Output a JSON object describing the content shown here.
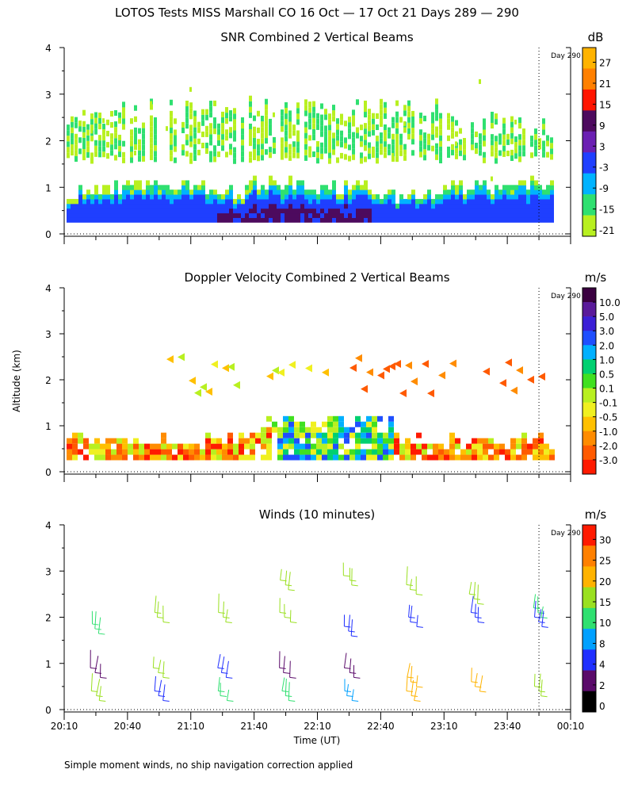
{
  "page_title": "LOTOS Tests MISS Marshall CO  16 Oct — 17 Oct 21 Days 289 — 290",
  "footnote": "Simple moment winds, no ship navigation correction applied",
  "day_marker_label": "Day 290",
  "chart_data": [
    {
      "type": "heatmap",
      "title": "SNR Combined 2 Vertical Beams",
      "colorbar_unit": "dB",
      "colorbar_ticks": [
        "27",
        "21",
        "15",
        "9",
        "3",
        "-3",
        "-9",
        "-15",
        "-21"
      ],
      "colors": [
        "#ffb300",
        "#ff8000",
        "#ff1500",
        "#4d0a5e",
        "#6b1fb3",
        "#1f3fff",
        "#00b3ff",
        "#2fe070",
        "#b8f020"
      ],
      "ylabel": "",
      "ylim": [
        0,
        4
      ],
      "yticks": [
        "0",
        "1",
        "2",
        "3",
        "4"
      ],
      "xlim_minutes": [
        1210,
        1450
      ],
      "layers": [
        {
          "name": "low boundary layer",
          "alt_bottom": 0.25,
          "alt_top_range": [
            0.6,
            1.25
          ],
          "dominant_level": "-3 to 9"
        },
        {
          "name": "upper layer",
          "alt_bottom": 1.5,
          "alt_top_range": [
            2.3,
            3.0
          ],
          "dominant_level": "-21 to -15"
        }
      ]
    },
    {
      "type": "heatmap",
      "title": "Doppler Velocity Combined 2 Vertical Beams",
      "colorbar_unit": "m/s",
      "colorbar_ticks": [
        "10.0",
        "5.0",
        "3.0",
        "2.0",
        "1.0",
        "0.5",
        "0.1",
        "-0.1",
        "-0.5",
        "-1.0",
        "-2.0",
        "-3.0"
      ],
      "colors": [
        "#3a0040",
        "#5a1a9a",
        "#3b1fd6",
        "#1f4fff",
        "#00b0ff",
        "#00d070",
        "#40e020",
        "#b8f020",
        "#f0f020",
        "#ffc000",
        "#ff8c00",
        "#ff5a00",
        "#ff1a00"
      ],
      "ylabel": "Altitude (km)",
      "ylim": [
        0,
        4
      ],
      "yticks": [
        "0",
        "1",
        "2",
        "3",
        "4"
      ],
      "xlim_minutes": [
        1210,
        1450
      ]
    },
    {
      "type": "scatter",
      "title": "Winds (10 minutes)",
      "colorbar_unit": "m/s",
      "colorbar_ticks": [
        "30",
        "25",
        "20",
        "15",
        "10",
        "8",
        "4",
        "2",
        "0"
      ],
      "colors": [
        "#ff1a00",
        "#ff8000",
        "#ffb300",
        "#9ae020",
        "#2fe070",
        "#00a0ff",
        "#1f2fff",
        "#5a0a6a",
        "#000000"
      ],
      "xlabel": "Time (UT)",
      "ylim": [
        0,
        4
      ],
      "yticks": [
        "0",
        "1",
        "2",
        "3",
        "4"
      ],
      "xlim_minutes": [
        1210,
        1450
      ],
      "xticks": [
        "20:10",
        "20:40",
        "21:10",
        "21:40",
        "22:10",
        "22:40",
        "23:10",
        "23:40",
        "00:10"
      ],
      "wind_profiles_minutes": [
        1225,
        1255,
        1285,
        1315,
        1345,
        1375,
        1405,
        1435
      ],
      "samples": [
        {
          "t": 1225,
          "alt": 1.75,
          "speed": 10
        },
        {
          "t": 1225,
          "alt": 0.8,
          "speed": 3
        },
        {
          "t": 1225,
          "alt": 0.3,
          "speed": 16
        },
        {
          "t": 1255,
          "alt": 2.0,
          "speed": 18
        },
        {
          "t": 1255,
          "alt": 0.8,
          "speed": 16
        },
        {
          "t": 1255,
          "alt": 0.3,
          "speed": 6
        },
        {
          "t": 1285,
          "alt": 2.0,
          "speed": 16
        },
        {
          "t": 1285,
          "alt": 0.8,
          "speed": 6
        },
        {
          "t": 1285,
          "alt": 0.3,
          "speed": 14
        },
        {
          "t": 1315,
          "alt": 2.7,
          "speed": 17
        },
        {
          "t": 1315,
          "alt": 2.0,
          "speed": 17
        },
        {
          "t": 1315,
          "alt": 0.8,
          "speed": 3
        },
        {
          "t": 1315,
          "alt": 0.3,
          "speed": 12
        },
        {
          "t": 1345,
          "alt": 2.8,
          "speed": 17
        },
        {
          "t": 1345,
          "alt": 1.7,
          "speed": 5
        },
        {
          "t": 1345,
          "alt": 0.8,
          "speed": 3
        },
        {
          "t": 1345,
          "alt": 0.3,
          "speed": 9
        },
        {
          "t": 1375,
          "alt": 2.6,
          "speed": 18
        },
        {
          "t": 1375,
          "alt": 1.9,
          "speed": 5
        },
        {
          "t": 1375,
          "alt": 0.6,
          "speed": 22
        },
        {
          "t": 1375,
          "alt": 0.3,
          "speed": 24
        },
        {
          "t": 1405,
          "alt": 2.4,
          "speed": 19
        },
        {
          "t": 1405,
          "alt": 2.0,
          "speed": 6
        },
        {
          "t": 1405,
          "alt": 0.5,
          "speed": 21
        },
        {
          "t": 1435,
          "alt": 2.1,
          "speed": 10
        },
        {
          "t": 1435,
          "alt": 1.9,
          "speed": 5
        },
        {
          "t": 1435,
          "alt": 0.4,
          "speed": 18
        }
      ]
    }
  ]
}
